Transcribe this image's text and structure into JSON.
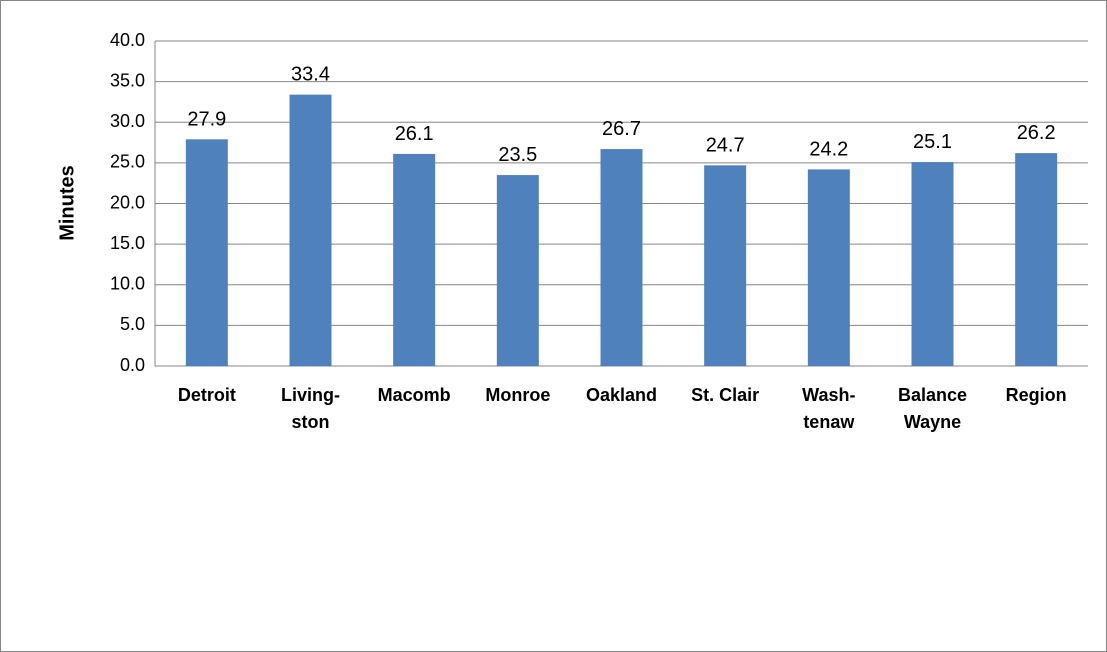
{
  "chart_data": {
    "type": "bar",
    "y_label": "Minutes",
    "categories": [
      "Detroit",
      "Living-\nston",
      "Macomb",
      "Monroe",
      "Oakland",
      "St. Clair",
      "Wash-\ntenaw",
      "Balance\nWayne",
      "Region"
    ],
    "values": [
      27.9,
      33.4,
      26.1,
      23.5,
      26.7,
      24.7,
      24.2,
      25.1,
      26.2
    ],
    "color": "#4f81bd",
    "ylim": [
      0,
      40
    ],
    "yticks": [
      {
        "value": 0,
        "label": "0.0"
      },
      {
        "value": 5,
        "label": "5.0"
      },
      {
        "value": 10,
        "label": "10.0"
      },
      {
        "value": 15,
        "label": "15.0"
      },
      {
        "value": 20,
        "label": "20.0"
      },
      {
        "value": 25,
        "label": "25.0"
      },
      {
        "value": 30,
        "label": "30.0"
      },
      {
        "value": 35,
        "label": "35.0"
      },
      {
        "value": 40,
        "label": "40.0"
      }
    ],
    "grid": true
  }
}
